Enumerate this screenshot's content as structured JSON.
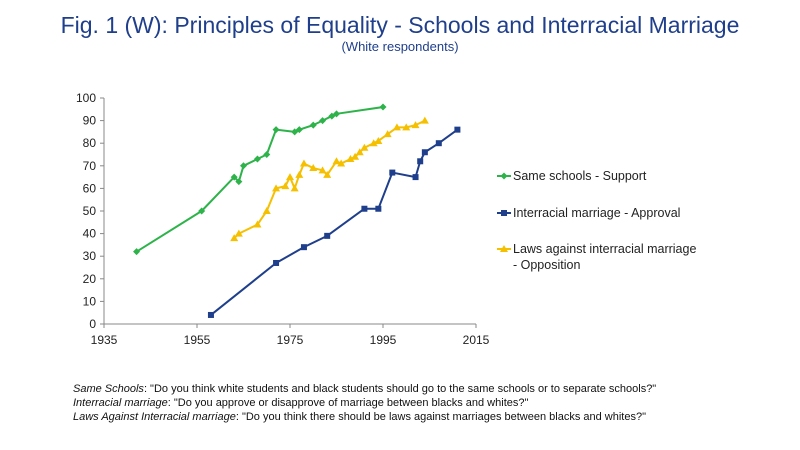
{
  "header": {
    "title": "Fig. 1 (W): Principles of Equality - Schools and Interracial Marriage",
    "subtitle": "(White respondents)"
  },
  "chart_data": {
    "type": "line",
    "title": "Fig. 1 (W): Principles of Equality - Schools and Interracial Marriage",
    "subtitle": "(White respondents)",
    "xlim": [
      1935,
      2015
    ],
    "ylim": [
      0,
      100
    ],
    "x_ticks": [
      1935,
      1955,
      1975,
      1995,
      2015
    ],
    "y_ticks": [
      0,
      10,
      20,
      30,
      40,
      50,
      60,
      70,
      80,
      90,
      100
    ],
    "grid": false,
    "legend_position": "right",
    "series": [
      {
        "name": "Same schools - Support",
        "color": "#2db34a",
        "marker": "diamond",
        "points": [
          [
            1942,
            32
          ],
          [
            1956,
            50
          ],
          [
            1963,
            65
          ],
          [
            1964,
            63
          ],
          [
            1965,
            70
          ],
          [
            1968,
            73
          ],
          [
            1970,
            75
          ],
          [
            1972,
            86
          ],
          [
            1976,
            85
          ],
          [
            1977,
            86
          ],
          [
            1980,
            88
          ],
          [
            1982,
            90
          ],
          [
            1984,
            92
          ],
          [
            1985,
            93
          ],
          [
            1995,
            96
          ]
        ]
      },
      {
        "name": "Interracial marriage - Approval",
        "color": "#1f3f8c",
        "marker": "square",
        "points": [
          [
            1958,
            4
          ],
          [
            1972,
            27
          ],
          [
            1978,
            34
          ],
          [
            1983,
            39
          ],
          [
            1991,
            51
          ],
          [
            1994,
            51
          ],
          [
            1997,
            67
          ],
          [
            2002,
            65
          ],
          [
            2003,
            72
          ],
          [
            2004,
            76
          ],
          [
            2007,
            80
          ],
          [
            2011,
            86
          ]
        ]
      },
      {
        "name": "Laws against interracial marriage\n- Opposition",
        "legend_lines": [
          "Laws against interracial marriage",
          "- Opposition"
        ],
        "color": "#f5c000",
        "marker": "triangle",
        "points": [
          [
            1963,
            38
          ],
          [
            1964,
            40
          ],
          [
            1968,
            44
          ],
          [
            1970,
            50
          ],
          [
            1972,
            60
          ],
          [
            1974,
            61
          ],
          [
            1975,
            65
          ],
          [
            1976,
            60
          ],
          [
            1977,
            66
          ],
          [
            1978,
            71
          ],
          [
            1980,
            69
          ],
          [
            1982,
            68
          ],
          [
            1983,
            66
          ],
          [
            1985,
            72
          ],
          [
            1986,
            71
          ],
          [
            1988,
            73
          ],
          [
            1989,
            74
          ],
          [
            1990,
            76
          ],
          [
            1991,
            78
          ],
          [
            1993,
            80
          ],
          [
            1994,
            81
          ],
          [
            1996,
            84
          ],
          [
            1998,
            87
          ],
          [
            2000,
            87
          ],
          [
            2002,
            88
          ],
          [
            2004,
            90
          ]
        ]
      }
    ]
  },
  "notes": [
    {
      "label": "Same Schools",
      "text": ": \"Do you think white students and black students should go to the same schools or to separate schools?\""
    },
    {
      "label": "Interracial marriage",
      "text": ": \"Do you approve or disapprove of marriage between blacks and whites?\""
    },
    {
      "label": "Laws Against Interracial marriage",
      "text": ": \"Do you think there should be laws against marriages between blacks and whites?\""
    }
  ]
}
